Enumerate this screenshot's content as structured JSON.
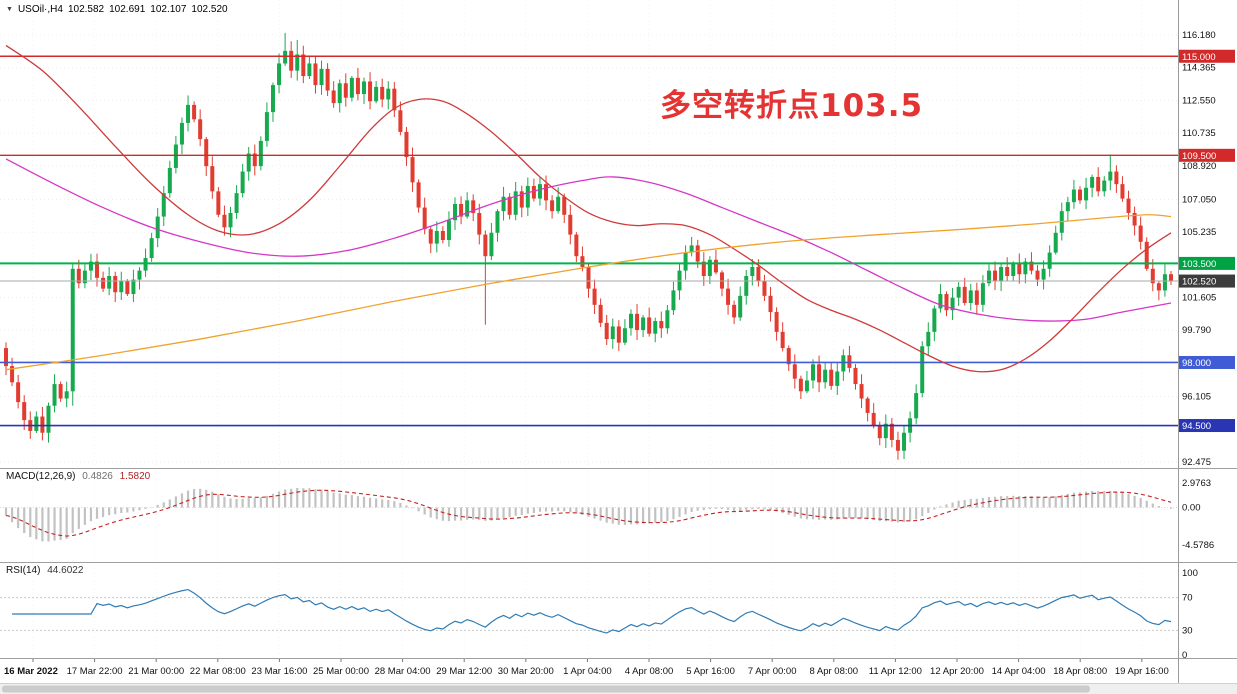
{
  "title": {
    "dropdown_icon": "▼",
    "symbol": "USOil·,H4",
    "open": "102.582",
    "high": "102.691",
    "low": "102.107",
    "close": "102.520"
  },
  "annotation": {
    "text": "多空转折点103.5",
    "color": "#e53232"
  },
  "chart_data": {
    "type": "candlestick",
    "symbol": "USOil",
    "timeframe": "H4",
    "y_axis": {
      "max": 116.18,
      "min": 92.475,
      "max_y": 35,
      "min_y": 462,
      "plain_labels": [
        "116.180",
        "114.365",
        "112.550",
        "110.735",
        "108.920",
        "107.050",
        "105.235",
        "101.605",
        "99.790",
        "96.105",
        "92.475"
      ],
      "boxes": [
        {
          "label": "115.000",
          "color": "#d22a2a"
        },
        {
          "label": "109.500",
          "color": "#d22a2a"
        },
        {
          "label": "103.500",
          "color": "#00a344"
        },
        {
          "label": "102.520",
          "color": "#3c3c3c"
        },
        {
          "label": "98.000",
          "color": "#3f5bd6"
        },
        {
          "label": "94.500",
          "color": "#2a35b4"
        }
      ]
    },
    "x_axis": {
      "labels": [
        "16 Mar 2022",
        "17 Mar 22:00",
        "21 Mar 00:00",
        "22 Mar 08:00",
        "23 Mar 16:00",
        "25 Mar 00:00",
        "28 Mar 04:00",
        "29 Mar 12:00",
        "30 Mar 20:00",
        "1 Apr 04:00",
        "4 Apr 08:00",
        "5 Apr 16:00",
        "7 Apr 00:00",
        "8 Apr 08:00",
        "11 Apr 12:00",
        "12 Apr 20:00",
        "14 Apr 04:00",
        "18 Apr 08:00",
        "19 Apr 16:00"
      ]
    },
    "levels": [
      {
        "value": 115.0,
        "color": "#d22a2a",
        "width": 1.4
      },
      {
        "value": 109.5,
        "color": "#d22a2a",
        "width": 1.4
      },
      {
        "value": 103.5,
        "color": "#00b44a",
        "width": 2
      },
      {
        "value": 102.52,
        "color": "#a9a9a9",
        "width": 1
      },
      {
        "value": 98.0,
        "color": "#3f5bd6",
        "width": 1.6
      },
      {
        "value": 94.5,
        "color": "#2a35b4",
        "width": 1.6
      }
    ],
    "colors": {
      "bull": "#17a94e",
      "bear": "#e23b30",
      "grid": "#ededed"
    },
    "candles": {
      "open_first": 98.8,
      "closes": [
        97.8,
        96.9,
        95.8,
        94.8,
        94.2,
        95.0,
        94.1,
        95.6,
        96.8,
        96.0,
        96.4,
        103.2,
        102.4,
        103.1,
        103.6,
        102.7,
        102.1,
        102.8,
        101.9,
        102.5,
        101.8,
        102.6,
        103.1,
        103.8,
        104.9,
        106.1,
        107.4,
        108.8,
        110.1,
        111.3,
        112.3,
        111.5,
        110.4,
        108.9,
        107.5,
        106.2,
        105.5,
        106.3,
        107.4,
        108.6,
        109.6,
        108.9,
        110.3,
        111.9,
        113.4,
        114.6,
        115.3,
        114.2,
        115.1,
        113.9,
        114.6,
        113.4,
        114.3,
        113.1,
        112.4,
        113.5,
        112.7,
        113.8,
        112.9,
        113.6,
        112.5,
        113.3,
        112.6,
        113.2,
        112.0,
        110.8,
        109.4,
        108.0,
        106.6,
        105.4,
        104.6,
        105.3,
        104.8,
        105.9,
        106.8,
        106.1,
        107.0,
        106.3,
        105.1,
        103.9,
        105.2,
        106.4,
        107.2,
        106.2,
        107.5,
        106.6,
        107.8,
        107.1,
        107.9,
        107.0,
        106.4,
        107.2,
        106.2,
        105.1,
        103.9,
        103.3,
        102.1,
        101.2,
        100.2,
        99.3,
        100.0,
        99.1,
        99.9,
        100.7,
        99.8,
        100.5,
        99.6,
        100.3,
        99.9,
        100.9,
        102.0,
        103.1,
        104.1,
        104.5,
        103.6,
        102.8,
        103.7,
        103.0,
        102.1,
        101.2,
        100.5,
        101.7,
        102.8,
        103.3,
        102.5,
        101.7,
        100.8,
        99.7,
        98.8,
        97.9,
        97.1,
        96.4,
        97.0,
        97.9,
        96.9,
        97.6,
        96.7,
        97.5,
        98.4,
        97.7,
        96.8,
        96.0,
        95.2,
        94.5,
        93.8,
        94.6,
        93.7,
        93.1,
        94.1,
        94.9,
        96.3,
        98.9,
        99.7,
        101.0,
        101.8,
        100.9,
        101.6,
        102.2,
        101.3,
        102.0,
        101.2,
        102.4,
        103.1,
        102.5,
        103.3,
        102.8,
        103.5,
        102.9,
        103.6,
        103.1,
        102.6,
        103.2,
        104.1,
        105.2,
        106.4,
        106.9,
        107.6,
        107.0,
        107.7,
        108.3,
        107.5,
        108.1,
        108.6,
        107.9,
        107.1,
        106.3,
        105.6,
        104.7,
        103.2,
        102.4,
        102.0,
        102.9,
        102.52
      ],
      "wick_overrides": {
        "11": {
          "low": 95.6
        },
        "46": {
          "high": 116.3
        },
        "48": {
          "high": 115.9
        },
        "79": {
          "low": 100.1
        },
        "147": {
          "low": 92.6
        },
        "182": {
          "high": 109.55
        }
      }
    },
    "moving_averages": [
      {
        "name": "ma-fast-magenta",
        "color": "#d636c8",
        "points": [
          [
            0,
            109.3
          ],
          [
            8,
            107.9
          ],
          [
            16,
            106.6
          ],
          [
            24,
            105.5
          ],
          [
            32,
            104.7
          ],
          [
            40,
            104.1
          ],
          [
            48,
            103.9
          ],
          [
            56,
            104.2
          ],
          [
            64,
            104.9
          ],
          [
            72,
            105.8
          ],
          [
            80,
            106.8
          ],
          [
            88,
            107.6
          ],
          [
            95,
            108.1
          ],
          [
            100,
            108.3
          ],
          [
            106,
            108.0
          ],
          [
            112,
            107.4
          ],
          [
            118,
            106.6
          ],
          [
            124,
            105.8
          ],
          [
            130,
            105.0
          ],
          [
            136,
            104.1
          ],
          [
            142,
            103.1
          ],
          [
            148,
            102.1
          ],
          [
            154,
            101.2
          ],
          [
            160,
            100.7
          ],
          [
            166,
            100.4
          ],
          [
            172,
            100.3
          ],
          [
            178,
            100.4
          ],
          [
            184,
            100.8
          ],
          [
            192,
            101.3
          ]
        ]
      },
      {
        "name": "ma-mid-red",
        "color": "#cf3a3a",
        "points": [
          [
            0,
            115.6
          ],
          [
            6,
            114.2
          ],
          [
            12,
            112.2
          ],
          [
            18,
            110.0
          ],
          [
            24,
            107.9
          ],
          [
            30,
            106.2
          ],
          [
            35,
            105.3
          ],
          [
            40,
            105.1
          ],
          [
            45,
            105.7
          ],
          [
            50,
            107.0
          ],
          [
            55,
            108.9
          ],
          [
            60,
            110.9
          ],
          [
            64,
            112.1
          ],
          [
            68,
            112.6
          ],
          [
            72,
            112.5
          ],
          [
            76,
            111.8
          ],
          [
            80,
            110.8
          ],
          [
            84,
            109.6
          ],
          [
            88,
            108.3
          ],
          [
            92,
            107.2
          ],
          [
            96,
            106.3
          ],
          [
            100,
            105.8
          ],
          [
            104,
            105.6
          ],
          [
            108,
            105.7
          ],
          [
            112,
            105.6
          ],
          [
            116,
            105.1
          ],
          [
            120,
            104.3
          ],
          [
            124,
            103.4
          ],
          [
            128,
            102.4
          ],
          [
            132,
            101.5
          ],
          [
            136,
            100.9
          ],
          [
            140,
            100.4
          ],
          [
            144,
            99.8
          ],
          [
            148,
            99.1
          ],
          [
            152,
            98.4
          ],
          [
            156,
            97.8
          ],
          [
            160,
            97.5
          ],
          [
            164,
            97.6
          ],
          [
            168,
            98.2
          ],
          [
            172,
            99.2
          ],
          [
            176,
            100.5
          ],
          [
            180,
            101.9
          ],
          [
            184,
            103.2
          ],
          [
            188,
            104.3
          ],
          [
            192,
            105.2
          ]
        ]
      },
      {
        "name": "ma-slow-orange",
        "color": "#efa32e",
        "points": [
          [
            0,
            97.6
          ],
          [
            16,
            98.4
          ],
          [
            32,
            99.3
          ],
          [
            48,
            100.3
          ],
          [
            64,
            101.4
          ],
          [
            80,
            102.4
          ],
          [
            96,
            103.3
          ],
          [
            112,
            104.1
          ],
          [
            128,
            104.7
          ],
          [
            144,
            105.1
          ],
          [
            158,
            105.4
          ],
          [
            170,
            105.7
          ],
          [
            180,
            106.0
          ],
          [
            188,
            106.2
          ],
          [
            192,
            106.1
          ]
        ]
      }
    ],
    "macd": {
      "label": "MACD(12,26,9)",
      "value_main": "0.4826",
      "value_signal": "1.5820",
      "fast": 12,
      "slow": 26,
      "signal": 9,
      "seed": 110,
      "scale_labels": [
        {
          "v": 2.9763,
          "label": "2.9763"
        },
        {
          "v": 0,
          "label": "0.00"
        },
        {
          "v": -4.5786,
          "label": "-4.5786"
        }
      ]
    },
    "rsi": {
      "label": "RSI(14)",
      "value": "44.6022",
      "period": 14,
      "scale_labels": [
        {
          "v": 100,
          "label": "100"
        },
        {
          "v": 70,
          "label": "70"
        },
        {
          "v": 30,
          "label": "30"
        },
        {
          "v": 0,
          "label": "0"
        }
      ],
      "levels": [
        70,
        30
      ]
    }
  }
}
